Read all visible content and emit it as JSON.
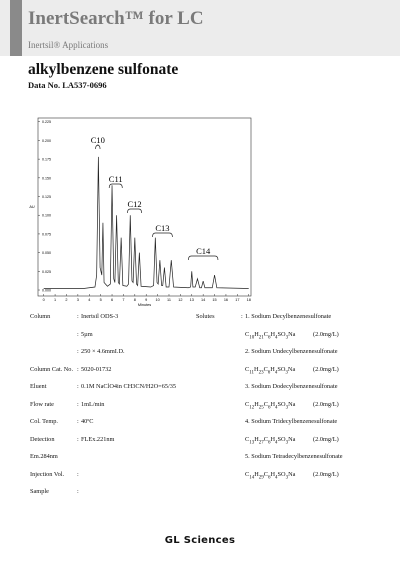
{
  "header": {
    "title": "InertSearch™ for LC",
    "subtitle": "Inertsil® Applications"
  },
  "document": {
    "title": "alkylbenzene sulfonate",
    "data_no": "Data No. LA537-0696"
  },
  "chart_data": {
    "type": "line",
    "x_label": "Minutes",
    "y_label": "AU",
    "color": "#222222",
    "x": [
      0,
      3.5,
      4.0,
      4.5,
      4.65,
      4.8,
      4.95,
      5.1,
      5.2,
      5.3,
      5.6,
      5.85,
      6.0,
      6.15,
      6.25,
      6.4,
      6.55,
      6.65,
      6.8,
      6.95,
      7.3,
      7.45,
      7.6,
      7.75,
      7.85,
      8.0,
      8.15,
      8.25,
      8.4,
      8.55,
      9.4,
      9.65,
      9.8,
      9.95,
      10.05,
      10.2,
      10.35,
      10.45,
      10.6,
      10.75,
      11.0,
      11.2,
      11.4,
      12.7,
      12.9,
      13.0,
      13.1,
      13.3,
      13.5,
      13.7,
      13.85,
      14.0,
      14.15,
      14.8,
      15.0,
      15.2,
      18
    ],
    "values": [
      0.002,
      0.002,
      0.003,
      0.004,
      0.02,
      0.178,
      0.03,
      0.02,
      0.09,
      0.01,
      0.005,
      0.008,
      0.14,
      0.015,
      0.01,
      0.1,
      0.01,
      0.008,
      0.07,
      0.006,
      0.005,
      0.008,
      0.1,
      0.012,
      0.01,
      0.07,
      0.008,
      0.006,
      0.05,
      0.005,
      0.004,
      0.006,
      0.07,
      0.01,
      0.008,
      0.04,
      0.006,
      0.006,
      0.03,
      0.004,
      0.004,
      0.04,
      0.004,
      0.003,
      0.004,
      0.025,
      0.004,
      0.004,
      0.015,
      0.003,
      0.003,
      0.012,
      0.003,
      0.003,
      0.02,
      0.003,
      0.002
    ],
    "xlim": [
      -0.5,
      18.2
    ],
    "ylim": [
      -0.008,
      0.23
    ],
    "xticks": [
      0,
      1,
      2,
      3,
      4,
      5,
      6,
      7,
      8,
      9,
      10,
      11,
      12,
      13,
      14,
      15,
      16,
      17,
      18
    ],
    "yticks": [
      {
        "value": 0,
        "label": "0.000"
      },
      {
        "value": 0.025,
        "label": "0.025"
      },
      {
        "value": 0.05,
        "label": "0.050"
      },
      {
        "value": 0.075,
        "label": "0.075"
      },
      {
        "value": 0.1,
        "label": "0.100"
      },
      {
        "value": 0.125,
        "label": "0.125"
      },
      {
        "value": 0.15,
        "label": "0.150"
      },
      {
        "value": 0.175,
        "label": "0.175"
      },
      {
        "value": 0.2,
        "label": "0.200"
      },
      {
        "value": 0.225,
        "label": "0.225"
      }
    ],
    "annotations": [
      "C10",
      "C11",
      "C12",
      "C13",
      "C14"
    ]
  },
  "conditions": [
    [
      "Column",
      "Inertsil ODS-3"
    ],
    [
      "",
      "5µm"
    ],
    [
      "",
      "250 × 4.6mmI.D."
    ],
    [
      "Column Cat. No.",
      "5020-01732"
    ],
    [
      "Eluent",
      "0.1M NaClO4in CH3CN/H2O=65/35"
    ],
    [
      "Flow rate",
      "1mL/min"
    ],
    [
      "Col. Temp.",
      "40ºC"
    ],
    [
      "Detection",
      "FLEx.221nm"
    ],
    [
      "Em.284nm",
      ""
    ],
    [
      "Injection Vol.",
      ""
    ],
    [
      "Sample",
      ""
    ]
  ],
  "solutes": {
    "label": "Solutes",
    "items": [
      [
        "1. Sodium Decylbenzenesulfonate",
        "C10H21C6H4SO3Na",
        "(2.0mg/L)"
      ],
      [
        "2. Sodium Undecylbenzenesulfonate",
        "C11H23C6H4SO3Na",
        "(2.0mg/L)"
      ],
      [
        "3. Sodium Dodecylbenzenesulfonate",
        "C12H25C6H4SO3Na",
        "(2.0mg/L)"
      ],
      [
        "4. Sodium Tridecylbenzenesulfonate",
        "C13H27C6H4SO3Na",
        "(2.0mg/L)"
      ],
      [
        "5. Sodium Tetradecylbenzenesulfonate",
        "C14H29C6H4SO3Na",
        "(2.0mg/L)"
      ]
    ]
  },
  "footer": {
    "logo": "GL Sciences"
  }
}
